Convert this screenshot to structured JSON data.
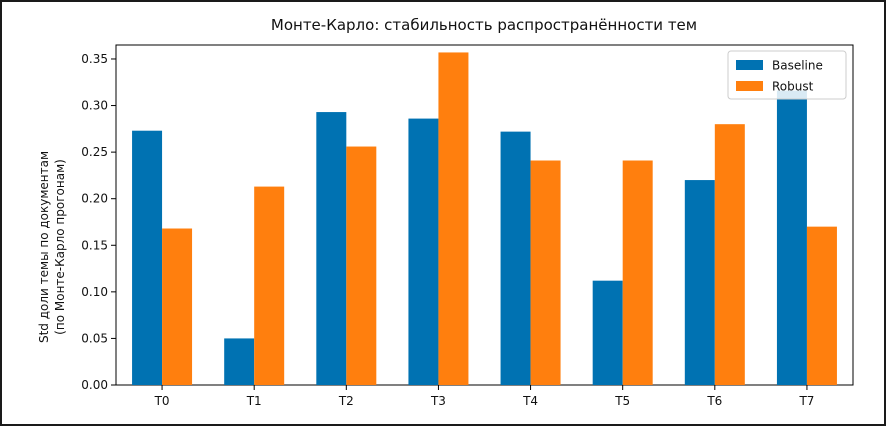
{
  "chart_data": {
    "type": "bar",
    "title": "Монте-Карло: стабильность распространённости тем",
    "xlabel": "",
    "ylabel": "Std доли темы по документам",
    "ylabel_line2": "(по Монте-Карло прогонам)",
    "categories": [
      "T0",
      "T1",
      "T2",
      "T3",
      "T4",
      "T5",
      "T6",
      "T7"
    ],
    "series": [
      {
        "name": "Baseline",
        "color": "#0072b2",
        "values": [
          0.273,
          0.05,
          0.293,
          0.286,
          0.272,
          0.112,
          0.22,
          0.316
        ]
      },
      {
        "name": "Robust",
        "color": "#ff7f0e",
        "values": [
          0.168,
          0.213,
          0.256,
          0.357,
          0.241,
          0.241,
          0.28,
          0.17
        ]
      }
    ],
    "ylim": [
      0,
      0.365
    ],
    "yticks": [
      "0.00",
      "0.05",
      "0.10",
      "0.15",
      "0.20",
      "0.25",
      "0.30",
      "0.35"
    ],
    "ytick_values": [
      0,
      0.05,
      0.1,
      0.15,
      0.2,
      0.25,
      0.3,
      0.35
    ],
    "legend_position": "top-right",
    "grid": false
  }
}
